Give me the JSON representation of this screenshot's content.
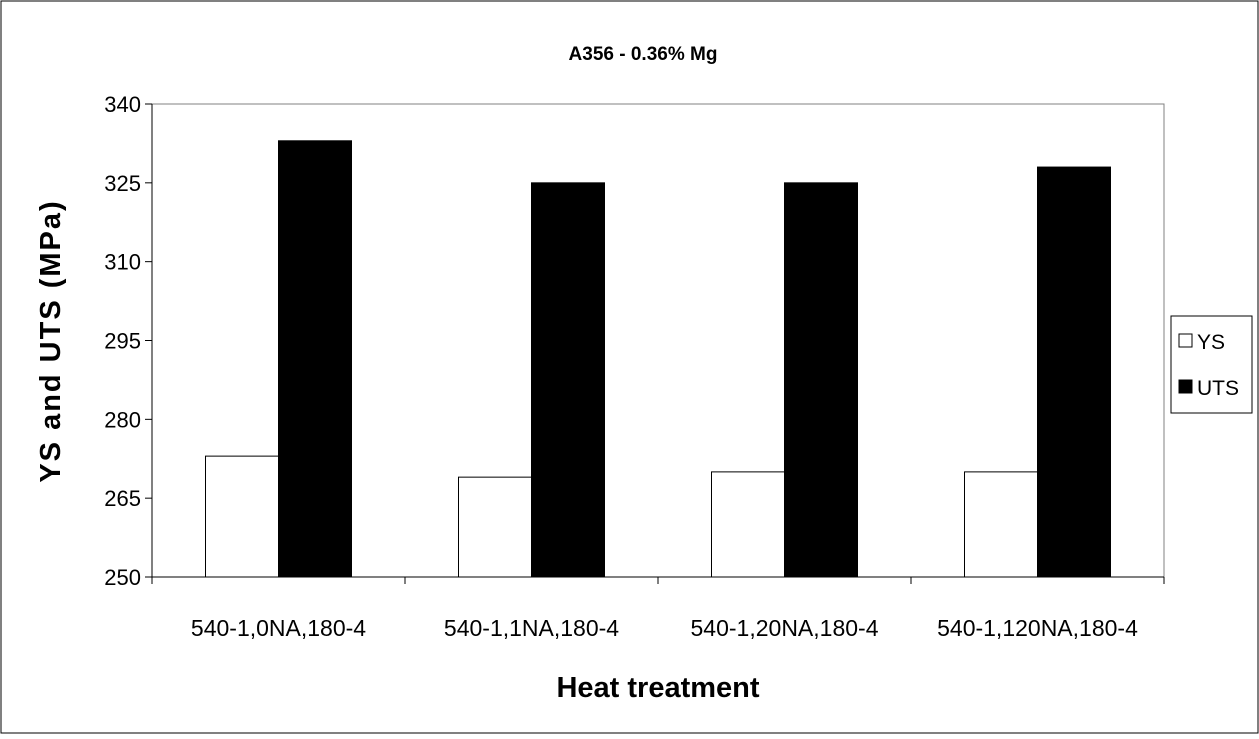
{
  "chart_data": {
    "type": "bar",
    "title": "A356 - 0.36% Mg",
    "xlabel": "Heat treatment",
    "ylabel": "YS and UTS (MPa)",
    "ylim": [
      250,
      340
    ],
    "yticks": [
      250,
      265,
      280,
      295,
      310,
      325,
      340
    ],
    "categories": [
      "540-1,0NA,180-4",
      "540-1,1NA,180-4",
      "540-1,20NA,180-4",
      "540-1,120NA,180-4"
    ],
    "series": [
      {
        "name": "YS",
        "values": [
          273,
          269,
          270,
          270
        ],
        "color": "#ffffff"
      },
      {
        "name": "UTS",
        "values": [
          333,
          325,
          325,
          328
        ],
        "color": "#000000"
      }
    ],
    "grid": false,
    "legend_position": "right"
  }
}
